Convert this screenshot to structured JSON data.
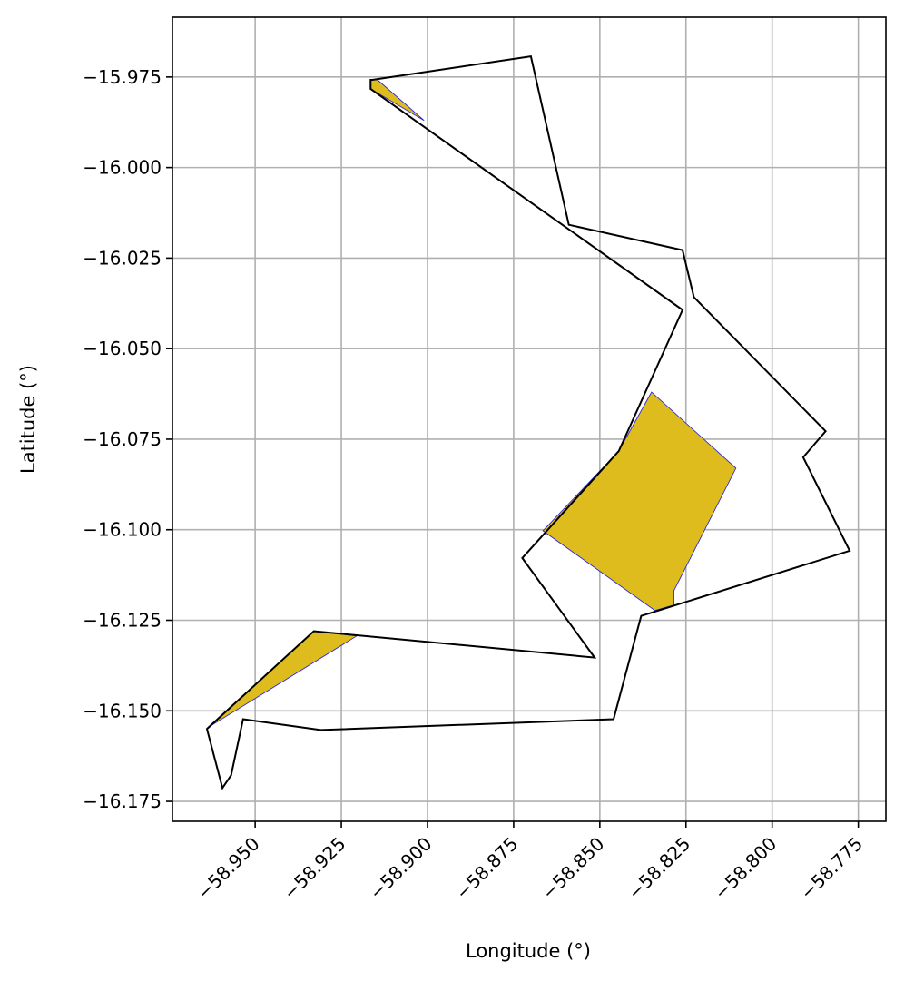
{
  "chart_data": {
    "type": "map-polygons",
    "xlabel": "Longitude (°)",
    "ylabel": "Latitude (°)",
    "xlim": [
      -58.974,
      -58.767
    ],
    "ylim": [
      -16.1805,
      -15.9585
    ],
    "grid": true,
    "x_ticks": [
      -58.95,
      -58.925,
      -58.9,
      -58.875,
      -58.85,
      -58.825,
      -58.8,
      -58.775
    ],
    "x_tick_labels": [
      "−58.950",
      "−58.925",
      "−58.900",
      "−58.875",
      "−58.850",
      "−58.825",
      "−58.800",
      "−58.775"
    ],
    "y_ticks": [
      -15.975,
      -16.0,
      -16.025,
      -16.05,
      -16.075,
      -16.1,
      -16.125,
      -16.15,
      -16.175
    ],
    "y_tick_labels": [
      "−15.975",
      "−16.000",
      "−16.025",
      "−16.050",
      "−16.075",
      "−16.100",
      "−16.125",
      "−16.150",
      "−16.175"
    ],
    "outline": {
      "color": "#000000",
      "coordinates": [
        [
          -58.916,
          -15.9758
        ],
        [
          -58.87,
          -15.9693
        ],
        [
          -58.859,
          -16.0158
        ],
        [
          -58.826,
          -16.0228
        ],
        [
          -58.8227,
          -16.0358
        ],
        [
          -58.7845,
          -16.0728
        ],
        [
          -58.791,
          -16.08
        ],
        [
          -58.7775,
          -16.1058
        ],
        [
          -58.838,
          -16.1238
        ],
        [
          -58.846,
          -16.1523
        ],
        [
          -58.931,
          -16.1553
        ],
        [
          -58.9535,
          -16.1523
        ],
        [
          -58.957,
          -16.1678
        ],
        [
          -58.9595,
          -16.1713
        ],
        [
          -58.964,
          -16.155
        ],
        [
          -58.933,
          -16.128
        ],
        [
          -58.8515,
          -16.1353
        ],
        [
          -58.8725,
          -16.1078
        ],
        [
          -58.8445,
          -16.0783
        ],
        [
          -58.826,
          -16.0393
        ],
        [
          -58.9165,
          -15.9783
        ],
        [
          -58.9165,
          -15.9758
        ]
      ]
    },
    "filled_regions": [
      {
        "fill": "#dfbc1e",
        "edge": "#2b2bd6",
        "coordinates": [
          [
            -58.9165,
            -15.9758
          ],
          [
            -58.9145,
            -15.9758
          ],
          [
            -58.901,
            -15.987
          ],
          [
            -58.9165,
            -15.9783
          ]
        ]
      },
      {
        "fill": "#dfbc1e",
        "edge": "#2b2bd6",
        "coordinates": [
          [
            -58.835,
            -16.062
          ],
          [
            -58.8105,
            -16.083
          ],
          [
            -58.8285,
            -16.1168
          ],
          [
            -58.8285,
            -16.1208
          ],
          [
            -58.834,
            -16.1223
          ],
          [
            -58.8665,
            -16.1003
          ],
          [
            -58.8445,
            -16.0783
          ]
        ]
      },
      {
        "fill": "#dfbc1e",
        "edge": "#2b2bd6",
        "coordinates": [
          [
            -58.933,
            -16.128
          ],
          [
            -58.9205,
            -16.1293
          ],
          [
            -58.964,
            -16.1548
          ]
        ]
      }
    ]
  }
}
